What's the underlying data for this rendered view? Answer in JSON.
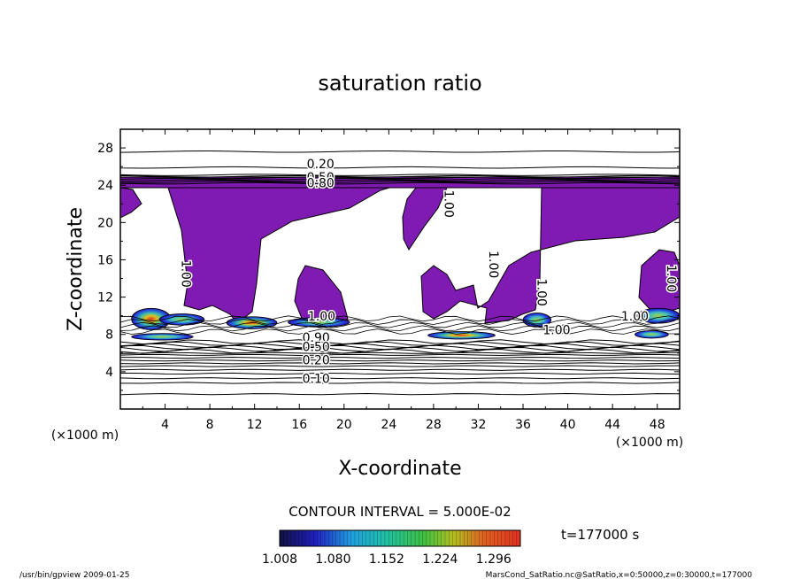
{
  "chart_data": {
    "type": "contour",
    "title": "saturation ratio",
    "xlabel": "X-coordinate",
    "ylabel": "Z-coordinate",
    "x_unit": "(×1000 m)",
    "y_unit": "(×1000 m)",
    "xlim": [
      0,
      50
    ],
    "ylim": [
      0,
      30
    ],
    "x_ticks": [
      "4",
      "8",
      "12",
      "16",
      "20",
      "24",
      "28",
      "32",
      "36",
      "40",
      "44",
      "48"
    ],
    "y_ticks": [
      "4",
      "8",
      "12",
      "16",
      "20",
      "24",
      "28"
    ],
    "contour_labels": [
      {
        "text": "0.20",
        "x": 17.9,
        "z": 25.8
      },
      {
        "text": "0.50",
        "x": 17.9,
        "z": 24.4
      },
      {
        "text": "0.80",
        "x": 17.9,
        "z": 23.8
      },
      {
        "text": "1.00",
        "x": 5.5,
        "z": 14.5
      },
      {
        "text": "1.00",
        "x": 29.0,
        "z": 22.0
      },
      {
        "text": "1.00",
        "x": 33.0,
        "z": 15.5
      },
      {
        "text": "1.00",
        "x": 37.3,
        "z": 12.5
      },
      {
        "text": "1.00",
        "x": 48.9,
        "z": 14.0
      },
      {
        "text": "1.00",
        "x": 18.0,
        "z": 9.5
      },
      {
        "text": "1.00",
        "x": 39.0,
        "z": 8.0
      },
      {
        "text": "1.00",
        "x": 46.0,
        "z": 9.5
      },
      {
        "text": "0.90",
        "x": 17.5,
        "z": 7.2
      },
      {
        "text": "0.50",
        "x": 17.5,
        "z": 6.2
      },
      {
        "text": "0.20",
        "x": 17.5,
        "z": 4.8
      },
      {
        "text": "0.10",
        "x": 17.5,
        "z": 2.8
      }
    ],
    "supersaturated_regions": [
      {
        "x": [
          1,
          4.5
        ],
        "z": [
          8.5,
          10.8
        ],
        "peak": 1.296
      },
      {
        "x": [
          1,
          6.5
        ],
        "z": [
          7.4,
          8.1
        ],
        "peak": 1.15
      },
      {
        "x": [
          3.5,
          7.5
        ],
        "z": [
          9.0,
          10.2
        ],
        "peak": 1.1
      },
      {
        "x": [
          9.5,
          14
        ],
        "z": [
          8.6,
          9.9
        ],
        "peak": 1.2
      },
      {
        "x": [
          15,
          20.5
        ],
        "z": [
          8.8,
          9.8
        ],
        "peak": 1.1
      },
      {
        "x": [
          27.5,
          33.5
        ],
        "z": [
          7.5,
          8.3
        ],
        "peak": 1.25
      },
      {
        "x": [
          36,
          38.5
        ],
        "z": [
          8.8,
          10.3
        ],
        "peak": 1.1
      },
      {
        "x": [
          46.2,
          50
        ],
        "z": [
          9.2,
          10.8
        ],
        "peak": 1.15
      },
      {
        "x": [
          46,
          49
        ],
        "z": [
          7.6,
          8.4
        ],
        "peak": 1.1
      }
    ],
    "contour_interval_label": "CONTOUR INTERVAL = 5.000E-02",
    "colorbar": {
      "ticks": [
        "1.008",
        "1.080",
        "1.152",
        "1.224",
        "1.296"
      ],
      "min": 1.008,
      "max": 1.332
    },
    "time_label": "t=177000 s",
    "footer_left": "/usr/bin/gpview  2009-01-25",
    "footer_right": "MarsCond_SatRatio.nc@SatRatio,x=0:50000,z=0:30000,t=177000",
    "colors": {
      "near_saturation": "#7f1ab2",
      "contour": "#000000"
    }
  }
}
